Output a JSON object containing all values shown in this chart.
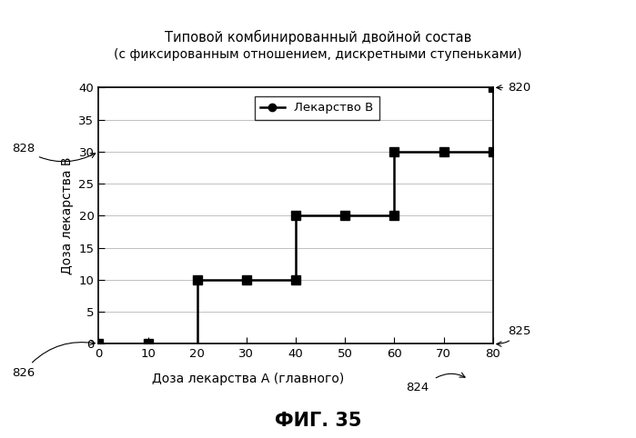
{
  "title_line1": "Типовой комбинированный двойной состав",
  "title_line2": "(с фиксированным отношением, дискретными ступеньками)",
  "xlabel": "Доза лекарства А (главного)",
  "ylabel": "Доза лекарства В",
  "legend_label": "Лекарство В",
  "fig_caption": "ФИГ. 35",
  "x_data": [
    0,
    10,
    20,
    20,
    30,
    40,
    40,
    50,
    60,
    60,
    70,
    80,
    80
  ],
  "y_data": [
    0,
    0,
    0,
    10,
    10,
    10,
    20,
    20,
    20,
    30,
    30,
    30,
    40
  ],
  "marker_x": [
    0,
    10,
    20,
    30,
    40,
    50,
    60,
    70,
    80,
    40,
    60,
    80
  ],
  "marker_y": [
    0,
    0,
    10,
    10,
    10,
    20,
    20,
    30,
    30,
    20,
    30,
    40
  ],
  "xlim": [
    0,
    80
  ],
  "ylim": [
    0,
    40
  ],
  "xticks": [
    0,
    10,
    20,
    30,
    40,
    50,
    60,
    70,
    80
  ],
  "yticks": [
    0,
    5,
    10,
    15,
    20,
    25,
    30,
    35,
    40
  ],
  "line_color": "#000000",
  "marker_color": "#000000",
  "bg_color": "#ffffff"
}
